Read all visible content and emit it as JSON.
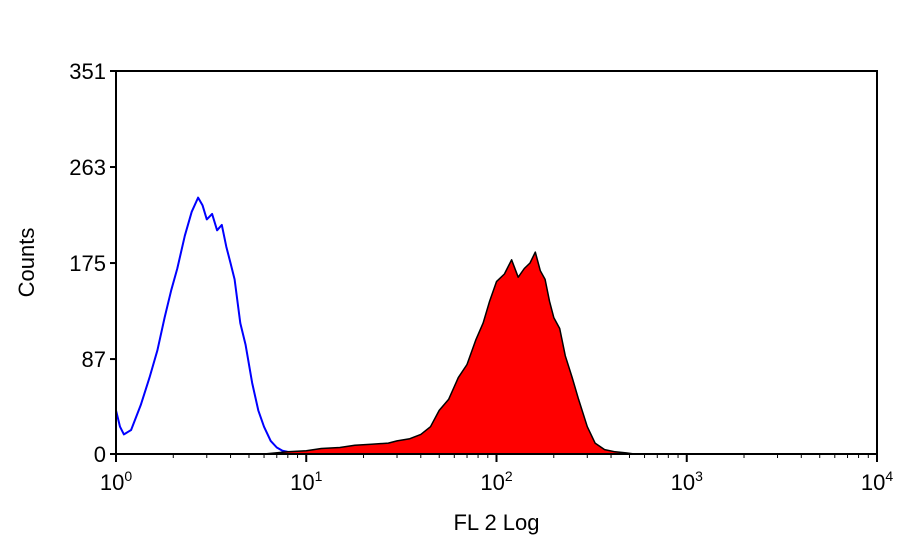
{
  "chart_data": {
    "type": "area",
    "title": "",
    "xlabel": "FL 2 Log",
    "ylabel": "Counts",
    "x_scale": "log",
    "xlim": [
      1,
      10000
    ],
    "ylim": [
      0,
      351
    ],
    "x_ticks": [
      {
        "base": "10",
        "exp": "0",
        "value": 1
      },
      {
        "base": "10",
        "exp": "1",
        "value": 10
      },
      {
        "base": "10",
        "exp": "2",
        "value": 100
      },
      {
        "base": "10",
        "exp": "3",
        "value": 1000
      },
      {
        "base": "10",
        "exp": "4",
        "value": 10000
      }
    ],
    "y_ticks": [
      {
        "label": "0",
        "value": 0
      },
      {
        "label": "87",
        "value": 87
      },
      {
        "label": "175",
        "value": 175
      },
      {
        "label": "263",
        "value": 263
      },
      {
        "label": "351",
        "value": 351
      }
    ],
    "grid": false,
    "legend": "none",
    "series": [
      {
        "style": "outline",
        "color": "#0000ff",
        "x": [
          1.0,
          1.05,
          1.1,
          1.2,
          1.35,
          1.5,
          1.65,
          1.8,
          1.95,
          2.1,
          2.3,
          2.5,
          2.7,
          2.85,
          3.0,
          3.2,
          3.4,
          3.6,
          3.8,
          4.0,
          4.2,
          4.5,
          4.8,
          5.2,
          5.6,
          6.0,
          6.5,
          7.0,
          7.5,
          8.0,
          8.5,
          9.0,
          10.0
        ],
        "y": [
          40,
          25,
          18,
          22,
          45,
          70,
          95,
          125,
          150,
          170,
          200,
          222,
          235,
          228,
          215,
          220,
          205,
          210,
          190,
          175,
          160,
          120,
          100,
          65,
          40,
          25,
          12,
          6,
          3,
          2,
          1,
          0,
          0
        ]
      },
      {
        "style": "filled",
        "color": "#ff0000",
        "edge_color": "#000000",
        "x": [
          6.0,
          8.0,
          10.0,
          12.0,
          15.0,
          18.0,
          22.0,
          27.0,
          30.0,
          35.0,
          40.0,
          45.0,
          50.0,
          56.0,
          63.0,
          70.0,
          78.0,
          85.0,
          92.0,
          100.0,
          110.0,
          120.0,
          130.0,
          140.0,
          150.0,
          160.0,
          170.0,
          180.0,
          190.0,
          200.0,
          215.0,
          230.0,
          250.0,
          270.0,
          300.0,
          330.0,
          370.0,
          420.0,
          480.0,
          530.0
        ],
        "y": [
          0,
          2,
          3,
          5,
          6,
          8,
          9,
          10,
          12,
          14,
          18,
          25,
          40,
          50,
          70,
          82,
          105,
          120,
          140,
          158,
          165,
          178,
          162,
          170,
          175,
          185,
          168,
          160,
          140,
          125,
          115,
          90,
          70,
          50,
          25,
          10,
          4,
          2,
          1,
          0
        ]
      }
    ]
  }
}
